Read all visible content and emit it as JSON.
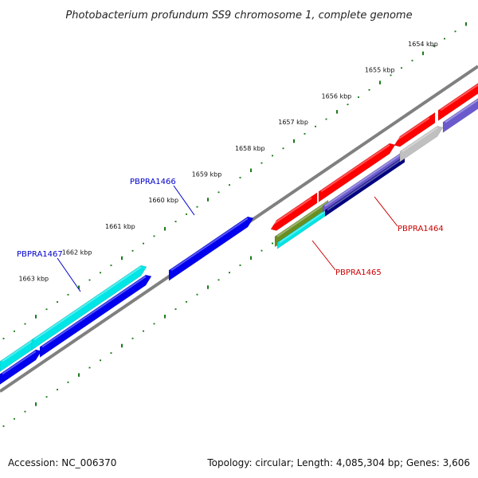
{
  "title": "Photobacterium profundum SS9 chromosome 1, complete genome",
  "ticks": [
    {
      "label": "1654 kbp",
      "kbp": 1654
    },
    {
      "label": "1655 kbp",
      "kbp": 1655
    },
    {
      "label": "1656 kbp",
      "kbp": 1656
    },
    {
      "label": "1657 kbp",
      "kbp": 1657
    },
    {
      "label": "1658 kbp",
      "kbp": 1658
    },
    {
      "label": "1659 kbp",
      "kbp": 1659
    },
    {
      "label": "1660 kbp",
      "kbp": 1660
    },
    {
      "label": "1661 kbp",
      "kbp": 1661
    },
    {
      "label": "1662 kbp",
      "kbp": 1662
    },
    {
      "label": "1663 kbp",
      "kbp": 1663
    }
  ],
  "gene_labels": [
    {
      "name": "PBPRA1466",
      "color": "#0000cc"
    },
    {
      "name": "PBPRA1467",
      "color": "#0000cc"
    },
    {
      "name": "PBPRA1464",
      "color": "#cc0000"
    },
    {
      "name": "PBPRA1465",
      "color": "#cc0000"
    }
  ],
  "colors": {
    "red": "#ff0000",
    "blue": "#0000ee",
    "cyan": "#00e5e5",
    "slate": "#6a5acd",
    "navy": "#000080",
    "gray": "#c0c0c0",
    "olive": "#6b8e23",
    "backbone": "#808080",
    "ticks": "#1a7a1a"
  },
  "footer": {
    "accession": "Accession: NC_006370",
    "summary": "Topology: circular; Length: 4,085,304 bp; Genes: 3,606"
  }
}
